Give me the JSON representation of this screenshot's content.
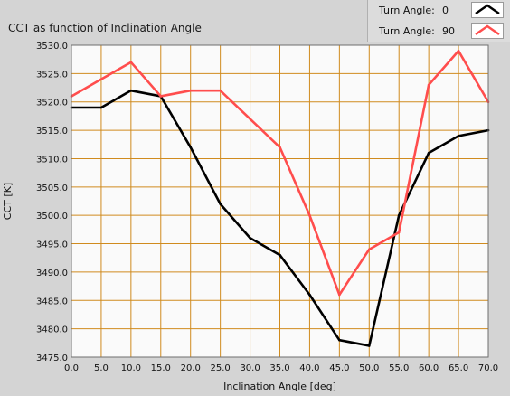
{
  "title": "CCT as function of Inclination Angle",
  "legend": [
    {
      "label": "Turn Angle:",
      "value": "0",
      "color": "#000000"
    },
    {
      "label": "Turn Angle:",
      "value": "90",
      "color": "#ff4d4d"
    }
  ],
  "chart_data": {
    "type": "line",
    "title": "CCT as function of Inclination Angle",
    "xlabel": "Inclination Angle [deg]",
    "ylabel": "CCT [K]",
    "xlim": [
      0,
      70
    ],
    "ylim": [
      3475,
      3530
    ],
    "x_ticks": [
      "0.0",
      "5.0",
      "10.0",
      "15.0",
      "20.0",
      "25.0",
      "30.0",
      "35.0",
      "40.0",
      "45.0",
      "50.0",
      "55.0",
      "60.0",
      "65.0",
      "70.0"
    ],
    "y_ticks": [
      "3475.0",
      "3480.0",
      "3485.0",
      "3490.0",
      "3495.0",
      "3500.0",
      "3505.0",
      "3510.0",
      "3515.0",
      "3520.0",
      "3525.0",
      "3530.0"
    ],
    "grid": true,
    "x": [
      0,
      5,
      10,
      15,
      20,
      25,
      30,
      35,
      40,
      45,
      50,
      55,
      60,
      65,
      70
    ],
    "series": [
      {
        "name": "Turn Angle: 0",
        "color": "#000000",
        "values": [
          3519,
          3519,
          3522,
          3521,
          3512,
          3502,
          3496,
          3493,
          3486,
          3478,
          3477,
          3500,
          3511,
          3514,
          3515
        ]
      },
      {
        "name": "Turn Angle: 90",
        "color": "#ff4d4d",
        "values": [
          3521,
          3524,
          3527,
          3521,
          3522,
          3522,
          3517,
          3512,
          3500,
          3486,
          3494,
          3497,
          3523,
          3529,
          3520
        ]
      }
    ],
    "legend_position": "top-right"
  }
}
